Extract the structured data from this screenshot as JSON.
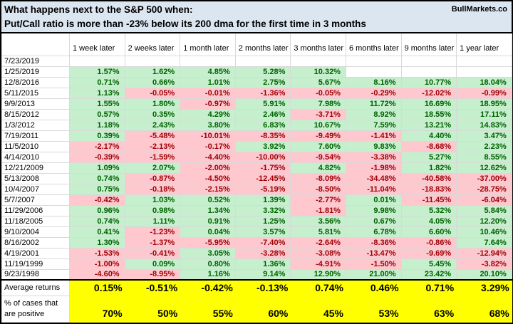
{
  "title": {
    "line1": "What happens next to the S&P 500 when:",
    "line2": "Put/Call ratio is more than -23% below its 200 dma for the first time in 3 months",
    "brand": "BullMarkets.co"
  },
  "colors": {
    "positive_bg": "#C6EFCE",
    "positive_text": "#006100",
    "negative_bg": "#FFC7CE",
    "negative_text": "#9C0006",
    "summary_bg": "#FFFF00",
    "title_bg": "#DCE6F1",
    "grid_line": "#D9D9D9",
    "border": "#000000"
  },
  "chart_data": {
    "type": "table",
    "title": "What happens next to the S&P 500 when: Put/Call ratio is more than -23% below its 200 dma for the first time in 3 months",
    "columns": [
      "1 week later",
      "2 weeks later",
      "1 month later",
      "2 months later",
      "3 months later",
      "6 months later",
      "9 months later",
      "1 year later"
    ],
    "rows": [
      {
        "date": "7/23/2019",
        "values": [
          "",
          "",
          "",
          "",
          "",
          "",
          "",
          ""
        ]
      },
      {
        "date": "1/25/2019",
        "values": [
          "1.57%",
          "1.62%",
          "4.85%",
          "5.28%",
          "10.32%",
          "",
          "",
          ""
        ]
      },
      {
        "date": "12/8/2016",
        "values": [
          "0.71%",
          "0.66%",
          "1.01%",
          "2.75%",
          "5.67%",
          "8.16%",
          "10.77%",
          "18.04%"
        ]
      },
      {
        "date": "5/11/2015",
        "values": [
          "1.13%",
          "-0.05%",
          "-0.01%",
          "-1.36%",
          "-0.05%",
          "-0.29%",
          "-12.02%",
          "-0.99%"
        ]
      },
      {
        "date": "9/9/2013",
        "values": [
          "1.55%",
          "1.80%",
          "-0.97%",
          "5.91%",
          "7.98%",
          "11.72%",
          "16.69%",
          "18.95%"
        ]
      },
      {
        "date": "8/15/2012",
        "values": [
          "0.57%",
          "0.35%",
          "4.29%",
          "2.46%",
          "-3.71%",
          "8.92%",
          "18.55%",
          "17.11%"
        ]
      },
      {
        "date": "1/3/2012",
        "values": [
          "1.18%",
          "2.43%",
          "3.80%",
          "6.83%",
          "10.67%",
          "7.59%",
          "13.21%",
          "14.83%"
        ]
      },
      {
        "date": "7/19/2011",
        "values": [
          "0.39%",
          "-5.48%",
          "-10.01%",
          "-8.35%",
          "-9.49%",
          "-1.41%",
          "4.40%",
          "3.47%"
        ]
      },
      {
        "date": "11/5/2010",
        "values": [
          "-2.17%",
          "-2.13%",
          "-0.17%",
          "3.92%",
          "7.60%",
          "9.83%",
          "-8.68%",
          "2.23%"
        ]
      },
      {
        "date": "4/14/2010",
        "values": [
          "-0.39%",
          "-1.59%",
          "-4.40%",
          "-10.00%",
          "-9.54%",
          "-3.38%",
          "5.27%",
          "8.55%"
        ]
      },
      {
        "date": "12/21/2009",
        "values": [
          "1.09%",
          "2.07%",
          "-2.00%",
          "-1.75%",
          "4.82%",
          "-1.98%",
          "1.82%",
          "12.62%"
        ]
      },
      {
        "date": "5/13/2008",
        "values": [
          "0.74%",
          "-0.87%",
          "-4.50%",
          "-12.45%",
          "-8.09%",
          "-34.48%",
          "-40.58%",
          "-37.00%"
        ]
      },
      {
        "date": "10/4/2007",
        "values": [
          "0.75%",
          "-0.18%",
          "-2.15%",
          "-5.19%",
          "-8.50%",
          "-11.04%",
          "-18.83%",
          "-28.75%"
        ]
      },
      {
        "date": "5/7/2007",
        "values": [
          "-0.42%",
          "1.03%",
          "0.52%",
          "1.39%",
          "-2.77%",
          "0.01%",
          "-11.45%",
          "-6.04%"
        ]
      },
      {
        "date": "11/29/2006",
        "values": [
          "0.96%",
          "0.98%",
          "1.34%",
          "3.32%",
          "-1.81%",
          "9.98%",
          "5.32%",
          "5.84%"
        ]
      },
      {
        "date": "11/18/2005",
        "values": [
          "0.74%",
          "1.11%",
          "0.91%",
          "1.25%",
          "3.56%",
          "0.67%",
          "4.05%",
          "12.20%"
        ]
      },
      {
        "date": "9/10/2004",
        "values": [
          "0.41%",
          "-1.23%",
          "0.04%",
          "3.57%",
          "5.81%",
          "6.78%",
          "6.60%",
          "10.46%"
        ]
      },
      {
        "date": "8/16/2002",
        "values": [
          "1.30%",
          "-1.37%",
          "-5.95%",
          "-7.40%",
          "-2.64%",
          "-8.36%",
          "-0.86%",
          "7.64%"
        ]
      },
      {
        "date": "4/19/2001",
        "values": [
          "-1.53%",
          "-0.41%",
          "3.05%",
          "-3.28%",
          "-3.08%",
          "-13.47%",
          "-9.69%",
          "-12.94%"
        ]
      },
      {
        "date": "11/19/1999",
        "values": [
          "-1.00%",
          "0.09%",
          "0.80%",
          "1.36%",
          "-4.91%",
          "-1.50%",
          "5.45%",
          "-3.82%"
        ]
      },
      {
        "date": "9/23/1998",
        "values": [
          "-4.60%",
          "-8.95%",
          "1.16%",
          "9.14%",
          "12.90%",
          "21.00%",
          "23.42%",
          "20.10%"
        ]
      }
    ],
    "summary": {
      "average_label": "Average returns",
      "average_values": [
        "0.15%",
        "-0.51%",
        "-0.42%",
        "-0.13%",
        "0.74%",
        "0.46%",
        "0.71%",
        "3.29%"
      ],
      "positive_label_line1": "% of cases that",
      "positive_label_line2": "are positive",
      "positive_values": [
        "70%",
        "50%",
        "55%",
        "60%",
        "45%",
        "53%",
        "63%",
        "68%"
      ]
    }
  }
}
